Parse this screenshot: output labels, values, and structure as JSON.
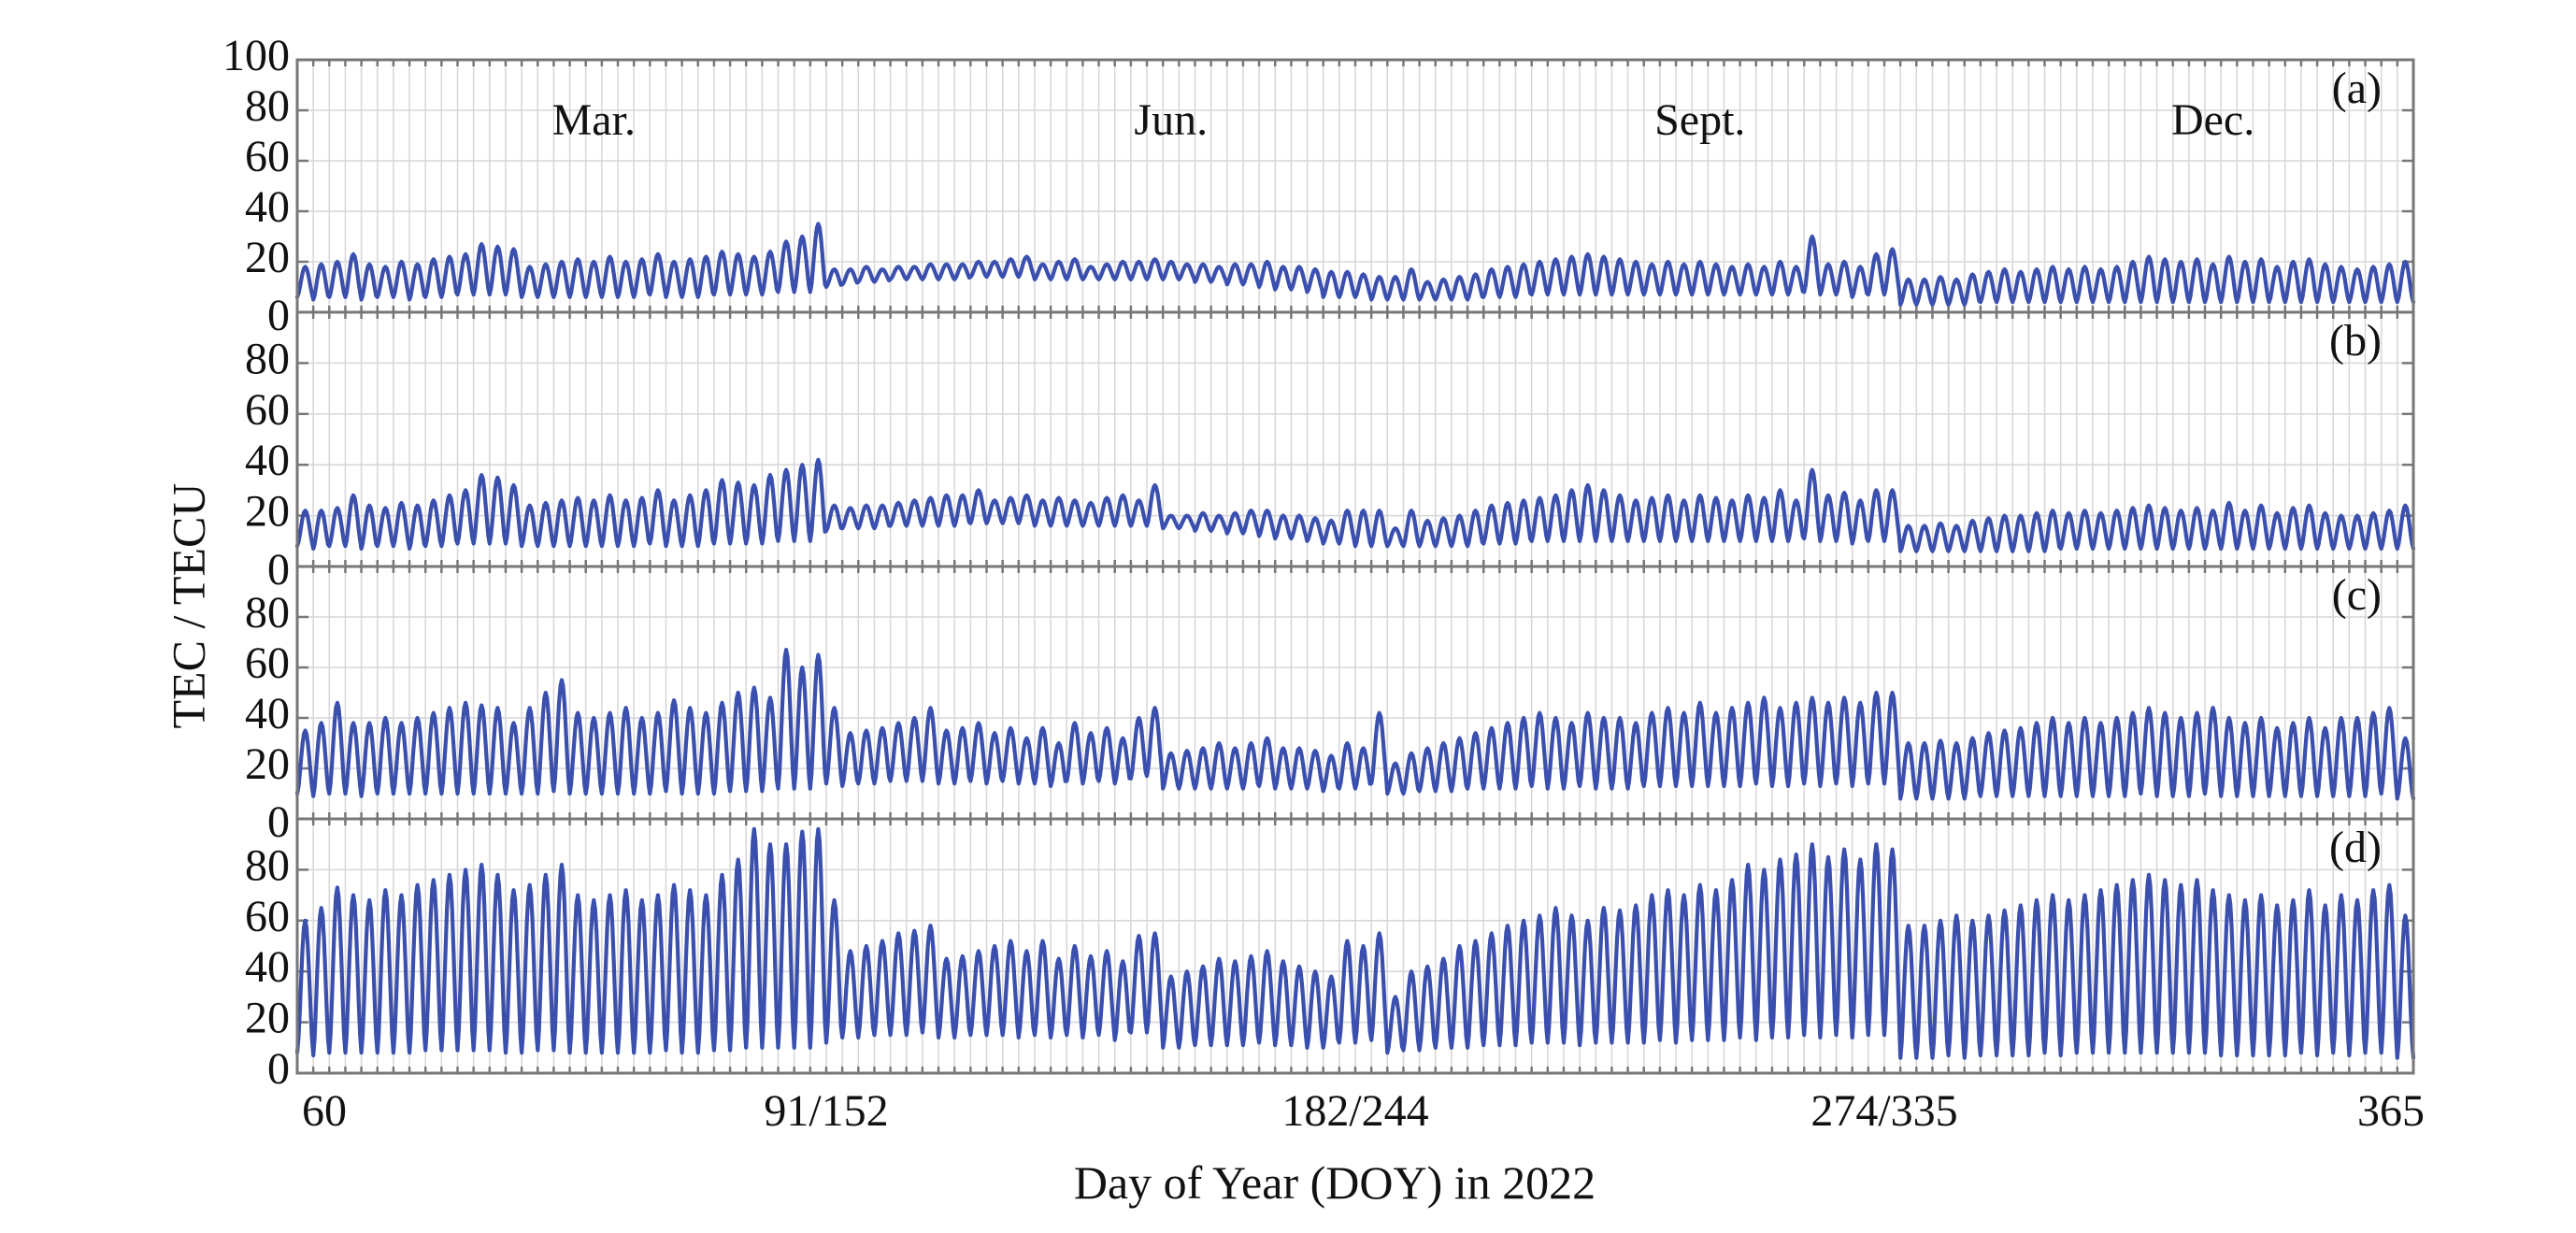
{
  "chart_data": {
    "type": "line",
    "x_label": "Day of Year (DOY) in 2022",
    "y_label": "TEC / TECU",
    "x_ticks": [
      "60",
      "91/152",
      "182/244",
      "274/335",
      "365"
    ],
    "month_labels": [
      "Mar.",
      "Jun.",
      "Sept.",
      "Dec."
    ],
    "x_segments": [
      {
        "month": "Mar.",
        "doy_start": 60,
        "doy_end": 91
      },
      {
        "month": "Jun.",
        "doy_start": 152,
        "doy_end": 182
      },
      {
        "month": "Sept.",
        "doy_start": 244,
        "doy_end": 274
      },
      {
        "month": "Dec.",
        "doy_start": 335,
        "doy_end": 365
      }
    ],
    "y_ticks": [
      0,
      20,
      40,
      60,
      80,
      100
    ],
    "ylim": [
      0,
      100
    ],
    "grid": true,
    "line_color": "#3a4fae",
    "panels": [
      {
        "label": "(a)",
        "daily_max": [
          18,
          19,
          20,
          23,
          19,
          18,
          20,
          19,
          21,
          22,
          23,
          27,
          26,
          25,
          18,
          19,
          20,
          21,
          20,
          22,
          20,
          21,
          23,
          20,
          21,
          22,
          24,
          23,
          22,
          24,
          28,
          30,
          35,
          17,
          17,
          18,
          17,
          18,
          18,
          19,
          19,
          19,
          20,
          20,
          21,
          22,
          19,
          20,
          21,
          18,
          19,
          20,
          20,
          21,
          20,
          19,
          19,
          18,
          19,
          19,
          20,
          18,
          18,
          17,
          16,
          16,
          15,
          14,
          14,
          17,
          12,
          13,
          14,
          15,
          17,
          18,
          19,
          20,
          21,
          22,
          23,
          22,
          21,
          20,
          19,
          20,
          19,
          20,
          19,
          18,
          19,
          18,
          20,
          18,
          30,
          19,
          20,
          18,
          23,
          25,
          13,
          13,
          14,
          13,
          15,
          16,
          17,
          16,
          17,
          18,
          17,
          18,
          17,
          18,
          20,
          22,
          21,
          20,
          21,
          19,
          22,
          20,
          21,
          18,
          20,
          21,
          19,
          18,
          17,
          18,
          19,
          20
        ],
        "daily_min": [
          6,
          5,
          6,
          6,
          5,
          6,
          6,
          5,
          6,
          6,
          7,
          7,
          7,
          7,
          6,
          6,
          6,
          6,
          6,
          6,
          6,
          6,
          7,
          6,
          6,
          6,
          7,
          7,
          7,
          7,
          8,
          8,
          8,
          10,
          11,
          12,
          12,
          13,
          13,
          13,
          13,
          13,
          14,
          14,
          14,
          14,
          13,
          13,
          13,
          13,
          13,
          13,
          13,
          13,
          13,
          13,
          12,
          12,
          11,
          11,
          10,
          9,
          9,
          8,
          6,
          6,
          6,
          5,
          5,
          5,
          5,
          5,
          5,
          5,
          6,
          6,
          6,
          7,
          7,
          7,
          7,
          7,
          7,
          7,
          7,
          7,
          7,
          7,
          7,
          7,
          7,
          7,
          7,
          7,
          8,
          7,
          7,
          6,
          7,
          7,
          3,
          3,
          3,
          3,
          3,
          4,
          4,
          4,
          4,
          4,
          4,
          4,
          4,
          4,
          4,
          4,
          4,
          4,
          4,
          4,
          4,
          4,
          4,
          4,
          4,
          4,
          4,
          4,
          4,
          4,
          4,
          4
        ]
      },
      {
        "label": "(b)",
        "daily_max": [
          22,
          22,
          23,
          28,
          24,
          23,
          25,
          24,
          26,
          28,
          30,
          36,
          35,
          32,
          24,
          25,
          26,
          27,
          26,
          28,
          26,
          27,
          30,
          26,
          28,
          30,
          34,
          33,
          32,
          36,
          38,
          40,
          42,
          24,
          23,
          24,
          24,
          25,
          26,
          27,
          28,
          28,
          30,
          26,
          27,
          28,
          26,
          27,
          26,
          25,
          27,
          28,
          26,
          32,
          20,
          20,
          21,
          20,
          21,
          22,
          22,
          20,
          20,
          19,
          18,
          22,
          22,
          22,
          15,
          22,
          18,
          19,
          20,
          22,
          24,
          25,
          26,
          27,
          28,
          30,
          32,
          30,
          28,
          26,
          27,
          28,
          26,
          28,
          27,
          26,
          28,
          27,
          30,
          26,
          38,
          28,
          29,
          26,
          30,
          30,
          16,
          16,
          17,
          16,
          18,
          19,
          20,
          20,
          21,
          22,
          21,
          22,
          21,
          22,
          23,
          24,
          23,
          22,
          23,
          22,
          25,
          22,
          24,
          21,
          23,
          24,
          21,
          20,
          20,
          21,
          22,
          24
        ],
        "daily_min": [
          8,
          7,
          8,
          8,
          7,
          8,
          8,
          7,
          8,
          8,
          9,
          9,
          9,
          9,
          8,
          8,
          8,
          8,
          8,
          8,
          8,
          8,
          9,
          8,
          8,
          8,
          9,
          9,
          9,
          9,
          10,
          10,
          10,
          14,
          15,
          15,
          15,
          16,
          16,
          16,
          16,
          16,
          17,
          17,
          17,
          17,
          16,
          16,
          16,
          16,
          16,
          16,
          16,
          16,
          15,
          15,
          14,
          14,
          13,
          13,
          12,
          11,
          11,
          10,
          9,
          9,
          8,
          8,
          8,
          8,
          8,
          8,
          8,
          8,
          9,
          9,
          9,
          10,
          10,
          10,
          10,
          10,
          10,
          10,
          10,
          10,
          10,
          10,
          10,
          10,
          10,
          10,
          10,
          10,
          11,
          10,
          10,
          9,
          10,
          10,
          6,
          6,
          6,
          6,
          6,
          6,
          6,
          6,
          6,
          6,
          7,
          7,
          7,
          7,
          7,
          7,
          7,
          7,
          7,
          7,
          7,
          7,
          7,
          7,
          7,
          7,
          7,
          7,
          7,
          7,
          7,
          7
        ]
      },
      {
        "label": "(c)",
        "daily_max": [
          35,
          38,
          46,
          38,
          38,
          40,
          38,
          40,
          42,
          44,
          46,
          45,
          44,
          38,
          44,
          50,
          55,
          42,
          40,
          42,
          44,
          40,
          42,
          47,
          44,
          42,
          46,
          50,
          52,
          48,
          67,
          60,
          65,
          44,
          34,
          35,
          36,
          38,
          40,
          44,
          35,
          36,
          38,
          34,
          36,
          32,
          36,
          30,
          38,
          34,
          36,
          32,
          40,
          44,
          26,
          27,
          28,
          30,
          28,
          30,
          32,
          28,
          28,
          27,
          25,
          30,
          28,
          42,
          22,
          26,
          28,
          30,
          32,
          34,
          36,
          38,
          40,
          42,
          40,
          38,
          42,
          40,
          40,
          38,
          42,
          44,
          42,
          46,
          42,
          44,
          46,
          48,
          44,
          46,
          48,
          46,
          48,
          46,
          50,
          50,
          30,
          30,
          31,
          30,
          32,
          34,
          35,
          36,
          38,
          40,
          38,
          40,
          38,
          40,
          42,
          44,
          42,
          40,
          42,
          44,
          40,
          38,
          40,
          36,
          38,
          40,
          36,
          40,
          40,
          42,
          44,
          32
        ],
        "daily_min": [
          10,
          9,
          10,
          10,
          9,
          10,
          10,
          10,
          10,
          10,
          10,
          10,
          10,
          10,
          10,
          10,
          11,
          10,
          10,
          10,
          10,
          10,
          10,
          11,
          10,
          10,
          10,
          11,
          11,
          11,
          12,
          12,
          12,
          14,
          13,
          14,
          14,
          15,
          15,
          15,
          14,
          14,
          15,
          14,
          15,
          14,
          14,
          13,
          15,
          14,
          15,
          14,
          16,
          17,
          12,
          12,
          12,
          12,
          12,
          12,
          13,
          12,
          12,
          12,
          11,
          12,
          12,
          14,
          10,
          10,
          11,
          11,
          11,
          12,
          12,
          12,
          12,
          13,
          12,
          12,
          13,
          12,
          12,
          12,
          13,
          13,
          13,
          13,
          13,
          13,
          13,
          14,
          13,
          13,
          14,
          13,
          14,
          13,
          14,
          14,
          8,
          8,
          8,
          8,
          8,
          9,
          9,
          9,
          9,
          9,
          9,
          9,
          9,
          9,
          9,
          10,
          9,
          9,
          9,
          10,
          9,
          9,
          9,
          9,
          9,
          9,
          9,
          9,
          9,
          9,
          10,
          8
        ]
      },
      {
        "label": "(d)",
        "daily_max": [
          60,
          65,
          73,
          70,
          68,
          72,
          70,
          74,
          76,
          78,
          80,
          82,
          78,
          72,
          74,
          78,
          82,
          70,
          68,
          70,
          72,
          68,
          70,
          74,
          72,
          70,
          78,
          84,
          96,
          90,
          90,
          95,
          96,
          68,
          48,
          50,
          52,
          55,
          56,
          58,
          45,
          46,
          48,
          50,
          52,
          48,
          52,
          45,
          50,
          46,
          48,
          44,
          54,
          55,
          38,
          40,
          42,
          45,
          44,
          46,
          48,
          44,
          42,
          40,
          38,
          52,
          50,
          55,
          30,
          40,
          42,
          45,
          50,
          52,
          55,
          58,
          60,
          62,
          65,
          62,
          60,
          65,
          64,
          66,
          70,
          72,
          70,
          74,
          72,
          76,
          82,
          80,
          84,
          86,
          90,
          85,
          88,
          84,
          90,
          88,
          58,
          58,
          60,
          62,
          60,
          62,
          64,
          66,
          68,
          70,
          68,
          70,
          72,
          74,
          76,
          78,
          76,
          74,
          76,
          72,
          70,
          68,
          70,
          66,
          68,
          72,
          66,
          70,
          68,
          72,
          74,
          62
        ],
        "daily_min": [
          8,
          7,
          8,
          8,
          8,
          8,
          8,
          8,
          9,
          9,
          9,
          9,
          9,
          8,
          8,
          9,
          9,
          8,
          8,
          8,
          8,
          8,
          8,
          9,
          8,
          8,
          9,
          9,
          10,
          10,
          10,
          10,
          10,
          12,
          14,
          14,
          15,
          15,
          15,
          16,
          14,
          14,
          15,
          15,
          15,
          14,
          15,
          14,
          15,
          14,
          15,
          13,
          16,
          16,
          10,
          10,
          11,
          11,
          11,
          11,
          12,
          11,
          11,
          10,
          10,
          12,
          12,
          13,
          8,
          9,
          9,
          10,
          10,
          10,
          11,
          11,
          11,
          12,
          12,
          12,
          11,
          12,
          12,
          12,
          12,
          13,
          12,
          13,
          13,
          13,
          14,
          13,
          14,
          14,
          15,
          14,
          15,
          14,
          15,
          15,
          6,
          6,
          6,
          7,
          6,
          7,
          7,
          7,
          7,
          8,
          7,
          8,
          8,
          8,
          8,
          8,
          8,
          8,
          8,
          8,
          7,
          7,
          7,
          7,
          7,
          8,
          7,
          8,
          7,
          8,
          8,
          6
        ]
      }
    ]
  }
}
